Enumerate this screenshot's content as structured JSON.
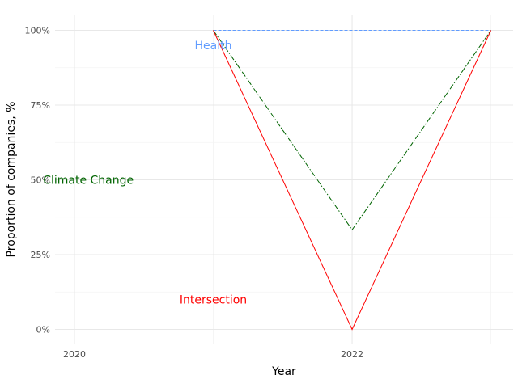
{
  "chart_data": {
    "type": "line",
    "xlabel": "Year",
    "ylabel": "Proportion of companies, %",
    "x_ticks": [
      2020,
      2022
    ],
    "y_ticks": [
      0,
      25,
      50,
      75,
      100
    ],
    "y_tick_labels": [
      "0%",
      "25%",
      "50%",
      "75%",
      "100%"
    ],
    "xlim": [
      2019.86,
      2023.16
    ],
    "ylim": [
      -5,
      105
    ],
    "grid": true,
    "series": [
      {
        "name": "Health",
        "color": "#619CFF",
        "dash": "dashed",
        "label_at": [
          2021,
          95
        ],
        "points": [
          [
            2021,
            100
          ],
          [
            2022,
            100
          ],
          [
            2023,
            100
          ]
        ]
      },
      {
        "name": "Climate Change",
        "color": "#006400",
        "dash": "dashdot",
        "label_at": [
          2020.1,
          50
        ],
        "points": [
          [
            2021,
            100
          ],
          [
            2022,
            33.3
          ],
          [
            2023,
            100
          ]
        ]
      },
      {
        "name": "Intersection",
        "color": "#FF0000",
        "dash": "solid",
        "label_at": [
          2021,
          10
        ],
        "points": [
          [
            2021,
            100
          ],
          [
            2022,
            0
          ],
          [
            2023,
            100
          ]
        ]
      }
    ]
  }
}
